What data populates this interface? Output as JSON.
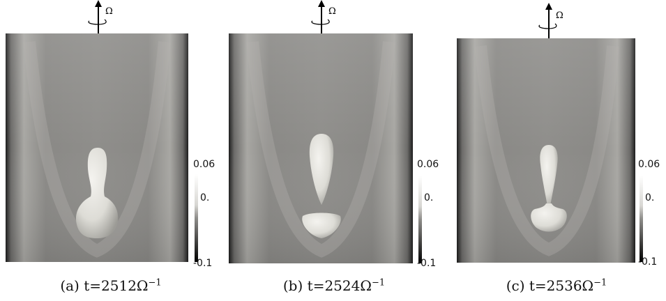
{
  "rotation_symbol": "Ω",
  "colorbar": {
    "max_label": "0.06",
    "mid_label": "0.",
    "min_label": "-0.1"
  },
  "panels": [
    {
      "caption_prefix": "(a)",
      "caption_time": "t=2512Ω",
      "caption_exponent": "−1"
    },
    {
      "caption_prefix": "(b)",
      "caption_time": "t=2524Ω",
      "caption_exponent": "−1"
    },
    {
      "caption_prefix": "(c)",
      "caption_time": "t=2536Ω",
      "caption_exponent": "−1"
    }
  ],
  "colors": {
    "background_gray": "#8e8d8a",
    "bubble_white": "#e6e5e0",
    "dark_edge": "#1a1a1a"
  }
}
